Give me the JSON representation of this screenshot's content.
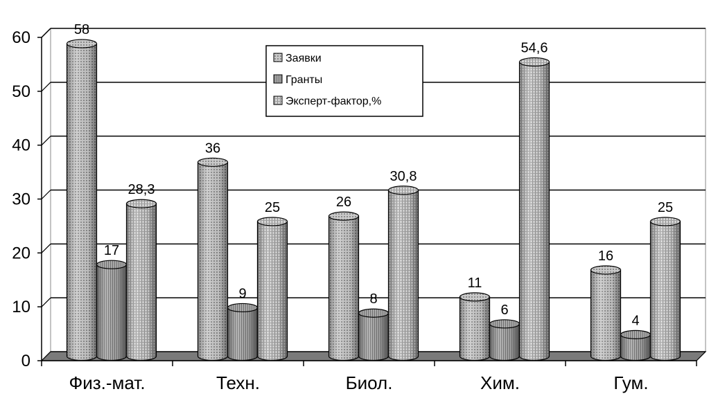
{
  "chart_data": {
    "type": "bar",
    "style": "3d-cylinder",
    "categories": [
      "Физ.-мат.",
      "Техн.",
      "Биол.",
      "Хим.",
      "Гум."
    ],
    "series": [
      {
        "name": "Заявки",
        "values": [
          58,
          36,
          26,
          11,
          16
        ],
        "labels": [
          "58",
          "36",
          "26",
          "11",
          "16"
        ],
        "color": "#b8b8b8"
      },
      {
        "name": "Гранты",
        "values": [
          17,
          9,
          8,
          6,
          4
        ],
        "labels": [
          "17",
          "9",
          "8",
          "6",
          "4"
        ],
        "color": "#9a9a9a"
      },
      {
        "name": "Эксперт-фактор,%",
        "values": [
          28.3,
          25,
          30.8,
          54.6,
          25
        ],
        "labels": [
          "28,3",
          "25",
          "30,8",
          "54,6",
          "25"
        ],
        "color": "#c4c4c4"
      }
    ],
    "yticks": [
      "0",
      "10",
      "20",
      "30",
      "40",
      "50",
      "60"
    ],
    "ylim": [
      0,
      60
    ],
    "grid": true,
    "legend": "top-center"
  }
}
